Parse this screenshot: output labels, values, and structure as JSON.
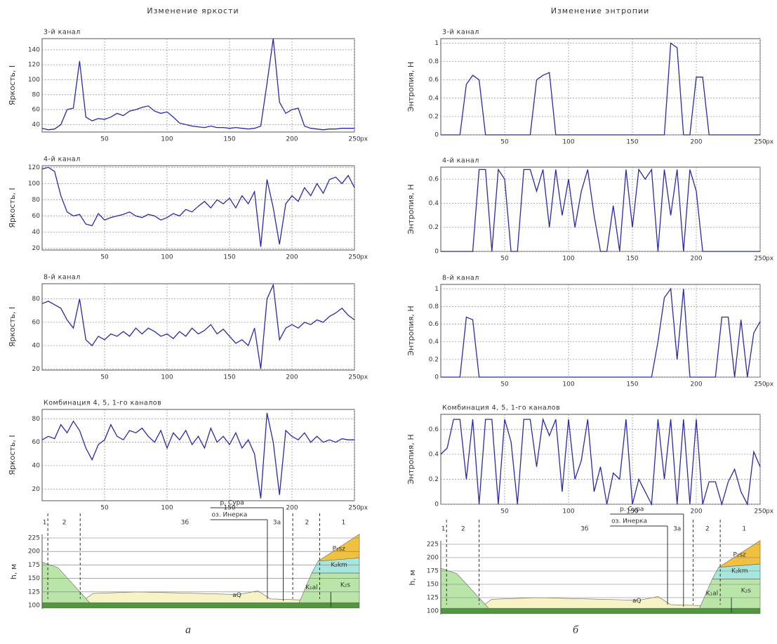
{
  "headers": [
    "Изменение яркости",
    "Изменение энтропии"
  ],
  "captions": [
    "а",
    "б"
  ],
  "chart_data": [
    {
      "type": "line",
      "title": "3-й канал",
      "ylabel": "Яркость, I",
      "xunit": "px",
      "x": [
        0,
        5,
        10,
        15,
        20,
        25,
        30,
        35,
        40,
        45,
        50,
        55,
        60,
        65,
        70,
        75,
        80,
        85,
        90,
        95,
        100,
        105,
        110,
        115,
        120,
        125,
        130,
        135,
        140,
        145,
        150,
        155,
        160,
        165,
        170,
        175,
        180,
        185,
        190,
        195,
        200,
        205,
        210,
        215,
        220,
        225,
        230,
        235,
        240,
        245,
        250
      ],
      "series": [
        {
          "name": "3-й канал",
          "color": "#2a2aa8",
          "values": [
            35,
            33,
            34,
            40,
            60,
            62,
            125,
            50,
            45,
            48,
            47,
            50,
            55,
            52,
            58,
            60,
            63,
            65,
            58,
            55,
            57,
            50,
            42,
            40,
            38,
            37,
            36,
            38,
            36,
            36,
            35,
            36,
            35,
            34,
            35,
            38,
            95,
            155,
            70,
            55,
            60,
            62,
            38,
            35,
            34,
            33,
            34,
            34,
            35,
            35,
            35
          ]
        }
      ],
      "xlim": [
        0,
        250
      ],
      "xticks": [
        50,
        100,
        150,
        200,
        250
      ],
      "ylim": [
        30,
        155
      ],
      "yticks": [
        40,
        60,
        80,
        100,
        120,
        140
      ],
      "grid": true
    },
    {
      "type": "line",
      "title": "4-й канал",
      "ylabel": "Яркость, I",
      "xunit": "px",
      "x": [
        0,
        5,
        10,
        15,
        20,
        25,
        30,
        35,
        40,
        45,
        50,
        55,
        60,
        65,
        70,
        75,
        80,
        85,
        90,
        95,
        100,
        105,
        110,
        115,
        120,
        125,
        130,
        135,
        140,
        145,
        150,
        155,
        160,
        165,
        170,
        175,
        180,
        185,
        190,
        195,
        200,
        205,
        210,
        215,
        220,
        225,
        230,
        235,
        240,
        245,
        250
      ],
      "series": [
        {
          "name": "4-й канал",
          "color": "#2a2aa8",
          "values": [
            118,
            120,
            115,
            85,
            65,
            60,
            62,
            50,
            48,
            63,
            55,
            58,
            60,
            62,
            65,
            60,
            58,
            62,
            60,
            55,
            58,
            63,
            60,
            68,
            65,
            72,
            78,
            70,
            80,
            75,
            82,
            70,
            85,
            75,
            90,
            22,
            105,
            70,
            25,
            75,
            85,
            78,
            95,
            85,
            100,
            88,
            105,
            108,
            100,
            110,
            95
          ]
        }
      ],
      "xlim": [
        0,
        250
      ],
      "xticks": [
        50,
        100,
        150,
        200,
        250
      ],
      "ylim": [
        18,
        122
      ],
      "yticks": [
        20,
        40,
        60,
        80,
        100,
        120
      ],
      "grid": true
    },
    {
      "type": "line",
      "title": "8-й канал",
      "ylabel": "Яркость, I",
      "xunit": "px",
      "x": [
        0,
        5,
        10,
        15,
        20,
        25,
        30,
        35,
        40,
        45,
        50,
        55,
        60,
        65,
        70,
        75,
        80,
        85,
        90,
        95,
        100,
        105,
        110,
        115,
        120,
        125,
        130,
        135,
        140,
        145,
        150,
        155,
        160,
        165,
        170,
        175,
        180,
        185,
        190,
        195,
        200,
        205,
        210,
        215,
        220,
        225,
        230,
        235,
        240,
        245,
        250
      ],
      "series": [
        {
          "name": "8-й канал",
          "color": "#2a2aa8",
          "values": [
            76,
            78,
            75,
            72,
            62,
            55,
            80,
            45,
            40,
            48,
            45,
            50,
            48,
            52,
            48,
            55,
            50,
            55,
            52,
            48,
            50,
            46,
            52,
            48,
            55,
            50,
            53,
            58,
            50,
            54,
            48,
            42,
            45,
            40,
            55,
            20,
            80,
            92,
            45,
            55,
            58,
            55,
            60,
            58,
            62,
            60,
            65,
            68,
            72,
            66,
            62
          ]
        }
      ],
      "xlim": [
        0,
        250
      ],
      "xticks": [
        50,
        100,
        150,
        200,
        250
      ],
      "ylim": [
        19,
        93
      ],
      "yticks": [
        20,
        40,
        60,
        80
      ],
      "grid": true
    },
    {
      "type": "line",
      "title": "Комбинация 4, 5, 1-го каналов",
      "ylabel": "Яркость, I",
      "xunit": "px",
      "x": [
        0,
        5,
        10,
        15,
        20,
        25,
        30,
        35,
        40,
        45,
        50,
        55,
        60,
        65,
        70,
        75,
        80,
        85,
        90,
        95,
        100,
        105,
        110,
        115,
        120,
        125,
        130,
        135,
        140,
        145,
        150,
        155,
        160,
        165,
        170,
        175,
        180,
        185,
        190,
        195,
        200,
        205,
        210,
        215,
        220,
        225,
        230,
        235,
        240,
        245,
        250
      ],
      "series": [
        {
          "name": "Комбинация 4, 5, 1-го каналов",
          "color": "#2a2aa8",
          "values": [
            62,
            65,
            63,
            75,
            68,
            78,
            70,
            55,
            45,
            58,
            62,
            75,
            65,
            62,
            70,
            68,
            72,
            65,
            60,
            70,
            55,
            68,
            62,
            70,
            58,
            65,
            55,
            72,
            60,
            65,
            58,
            68,
            55,
            62,
            50,
            12,
            85,
            60,
            15,
            70,
            65,
            62,
            68,
            60,
            65,
            60,
            62,
            60,
            63,
            62,
            62
          ]
        }
      ],
      "xlim": [
        0,
        250
      ],
      "xticks": [
        50,
        100,
        150,
        200,
        250
      ],
      "ylim": [
        10,
        88
      ],
      "yticks": [
        20,
        40,
        60,
        80
      ],
      "grid": true
    },
    {
      "type": "line",
      "title": "3-й канал",
      "ylabel": "Энтропия, H",
      "xunit": "px",
      "x": [
        0,
        5,
        10,
        15,
        20,
        25,
        30,
        35,
        40,
        45,
        50,
        55,
        60,
        65,
        70,
        75,
        80,
        85,
        90,
        95,
        100,
        105,
        110,
        115,
        120,
        125,
        130,
        135,
        140,
        145,
        150,
        155,
        160,
        165,
        170,
        175,
        180,
        185,
        190,
        195,
        200,
        205,
        210,
        215,
        220,
        225,
        230,
        235,
        240,
        245,
        250
      ],
      "series": [
        {
          "name": "3-й канал",
          "color": "#2a2aa8",
          "values": [
            0,
            0,
            0,
            0,
            0.55,
            0.65,
            0.6,
            0,
            0,
            0,
            0,
            0,
            0,
            0,
            0,
            0.6,
            0.65,
            0.68,
            0,
            0,
            0,
            0,
            0,
            0,
            0,
            0,
            0,
            0,
            0,
            0,
            0,
            0,
            0,
            0,
            0,
            0,
            1,
            0.95,
            0,
            0,
            0.63,
            0.63,
            0,
            0,
            0,
            0,
            0,
            0,
            0,
            0,
            0
          ]
        }
      ],
      "xlim": [
        0,
        250
      ],
      "xticks": [
        50,
        100,
        150,
        200,
        250
      ],
      "ylim": [
        0,
        1.05
      ],
      "yticks": [
        0,
        0.2,
        0.4,
        0.6,
        0.8,
        1
      ],
      "grid": true
    },
    {
      "type": "line",
      "title": "4-й канал",
      "ylabel": "Энтропия, H",
      "xunit": "px",
      "x": [
        0,
        5,
        10,
        15,
        20,
        25,
        30,
        35,
        40,
        45,
        50,
        55,
        60,
        65,
        70,
        75,
        80,
        85,
        90,
        95,
        100,
        105,
        110,
        115,
        120,
        125,
        130,
        135,
        140,
        145,
        150,
        155,
        160,
        165,
        170,
        175,
        180,
        185,
        190,
        195,
        200,
        205,
        210,
        215,
        220,
        225,
        230,
        235,
        240,
        245,
        250
      ],
      "series": [
        {
          "name": "4-й канал",
          "color": "#2a2aa8",
          "values": [
            0,
            0,
            0,
            0,
            0,
            0,
            0.68,
            0.68,
            0,
            0.68,
            0.6,
            0,
            0,
            0.68,
            0.68,
            0.5,
            0.68,
            0.2,
            0.68,
            0.3,
            0.6,
            0.2,
            0.5,
            0.68,
            0.3,
            0,
            0,
            0.38,
            0,
            0.68,
            0.2,
            0.68,
            0.6,
            0.68,
            0,
            0.68,
            0.3,
            0.68,
            0,
            0.68,
            0.5,
            0,
            0,
            0,
            0,
            0,
            0,
            0,
            0,
            0,
            0
          ]
        }
      ],
      "xlim": [
        0,
        250
      ],
      "xticks": [
        50,
        100,
        150,
        200,
        250
      ],
      "ylim": [
        0,
        0.7
      ],
      "yticks": [
        0,
        0.2,
        0.4,
        0.6
      ],
      "grid": true
    },
    {
      "type": "line",
      "title": "8-й канал",
      "ylabel": "Энтропия, H",
      "xunit": "px",
      "x": [
        0,
        5,
        10,
        15,
        20,
        25,
        30,
        35,
        40,
        45,
        50,
        55,
        60,
        65,
        70,
        75,
        80,
        85,
        90,
        95,
        100,
        105,
        110,
        115,
        120,
        125,
        130,
        135,
        140,
        145,
        150,
        155,
        160,
        165,
        170,
        175,
        180,
        185,
        190,
        195,
        200,
        205,
        210,
        215,
        220,
        225,
        230,
        235,
        240,
        245,
        250
      ],
      "series": [
        {
          "name": "8-й канал",
          "color": "#2a2aa8",
          "values": [
            0,
            0,
            0,
            0,
            0.68,
            0.65,
            0,
            0,
            0,
            0,
            0,
            0,
            0,
            0,
            0,
            0,
            0,
            0,
            0,
            0,
            0,
            0,
            0,
            0,
            0,
            0,
            0,
            0,
            0,
            0,
            0,
            0,
            0,
            0,
            0.4,
            0.9,
            1,
            0.2,
            1,
            0,
            0,
            0,
            0,
            0,
            0.68,
            0.68,
            0,
            0.65,
            0,
            0.5,
            0.63
          ]
        }
      ],
      "xlim": [
        0,
        250
      ],
      "xticks": [
        50,
        100,
        150,
        200,
        250
      ],
      "ylim": [
        0,
        1.05
      ],
      "yticks": [
        0,
        0.2,
        0.4,
        0.6,
        0.8,
        1
      ],
      "grid": true
    },
    {
      "type": "line",
      "title": "Комбинация 4, 5, 1-го каналов",
      "ylabel": "Энтропия, H",
      "xunit": "px",
      "x": [
        0,
        5,
        10,
        15,
        20,
        25,
        30,
        35,
        40,
        45,
        50,
        55,
        60,
        65,
        70,
        75,
        80,
        85,
        90,
        95,
        100,
        105,
        110,
        115,
        120,
        125,
        130,
        135,
        140,
        145,
        150,
        155,
        160,
        165,
        170,
        175,
        180,
        185,
        190,
        195,
        200,
        205,
        210,
        215,
        220,
        225,
        230,
        235,
        240,
        245,
        250
      ],
      "series": [
        {
          "name": "Комбинация 4, 5, 1-го каналов",
          "color": "#2a2aa8",
          "values": [
            0.4,
            0.45,
            0.68,
            0.68,
            0.2,
            0.68,
            0,
            0.68,
            0.68,
            0,
            0.68,
            0.5,
            0,
            0.68,
            0.68,
            0.3,
            0.68,
            0.55,
            0.68,
            0.1,
            0.68,
            0.2,
            0.35,
            0.68,
            0.1,
            0.3,
            0,
            0.25,
            0.2,
            0.68,
            0,
            0.2,
            0.1,
            0,
            0.68,
            0.2,
            0.68,
            0,
            0.68,
            0,
            0.68,
            0,
            0.18,
            0.18,
            0,
            0.18,
            0.28,
            0.1,
            0,
            0.42,
            0.3
          ]
        }
      ],
      "xlim": [
        0,
        250
      ],
      "xticks": [
        50,
        100,
        150,
        200,
        250
      ],
      "ylim": [
        0,
        0.72
      ],
      "yticks": [
        0,
        0.2,
        0.4,
        0.6
      ],
      "grid": true
    }
  ],
  "profiles": [
    {
      "ylabel": "h, м",
      "yticks": [
        225,
        200,
        175,
        150,
        125,
        100
      ],
      "zones": [
        "1",
        "2",
        "3б",
        "3а",
        "2",
        "1"
      ],
      "river": "р. Сура",
      "lake": "оз. Инерка",
      "layers": [
        "P₂sz",
        "K₂km",
        "K₂s",
        "K₁al",
        "aQ"
      ]
    },
    {
      "ylabel": "h, м",
      "yticks": [
        225,
        200,
        175,
        150,
        125,
        100
      ],
      "zones": [
        "1",
        "2",
        "3б",
        "3а",
        "2",
        "1"
      ],
      "river": "р. Сура",
      "lake": "оз. Инерка",
      "layers": [
        "P₂sz",
        "K₂km",
        "K₂s",
        "K₁al",
        "aQ"
      ]
    }
  ]
}
